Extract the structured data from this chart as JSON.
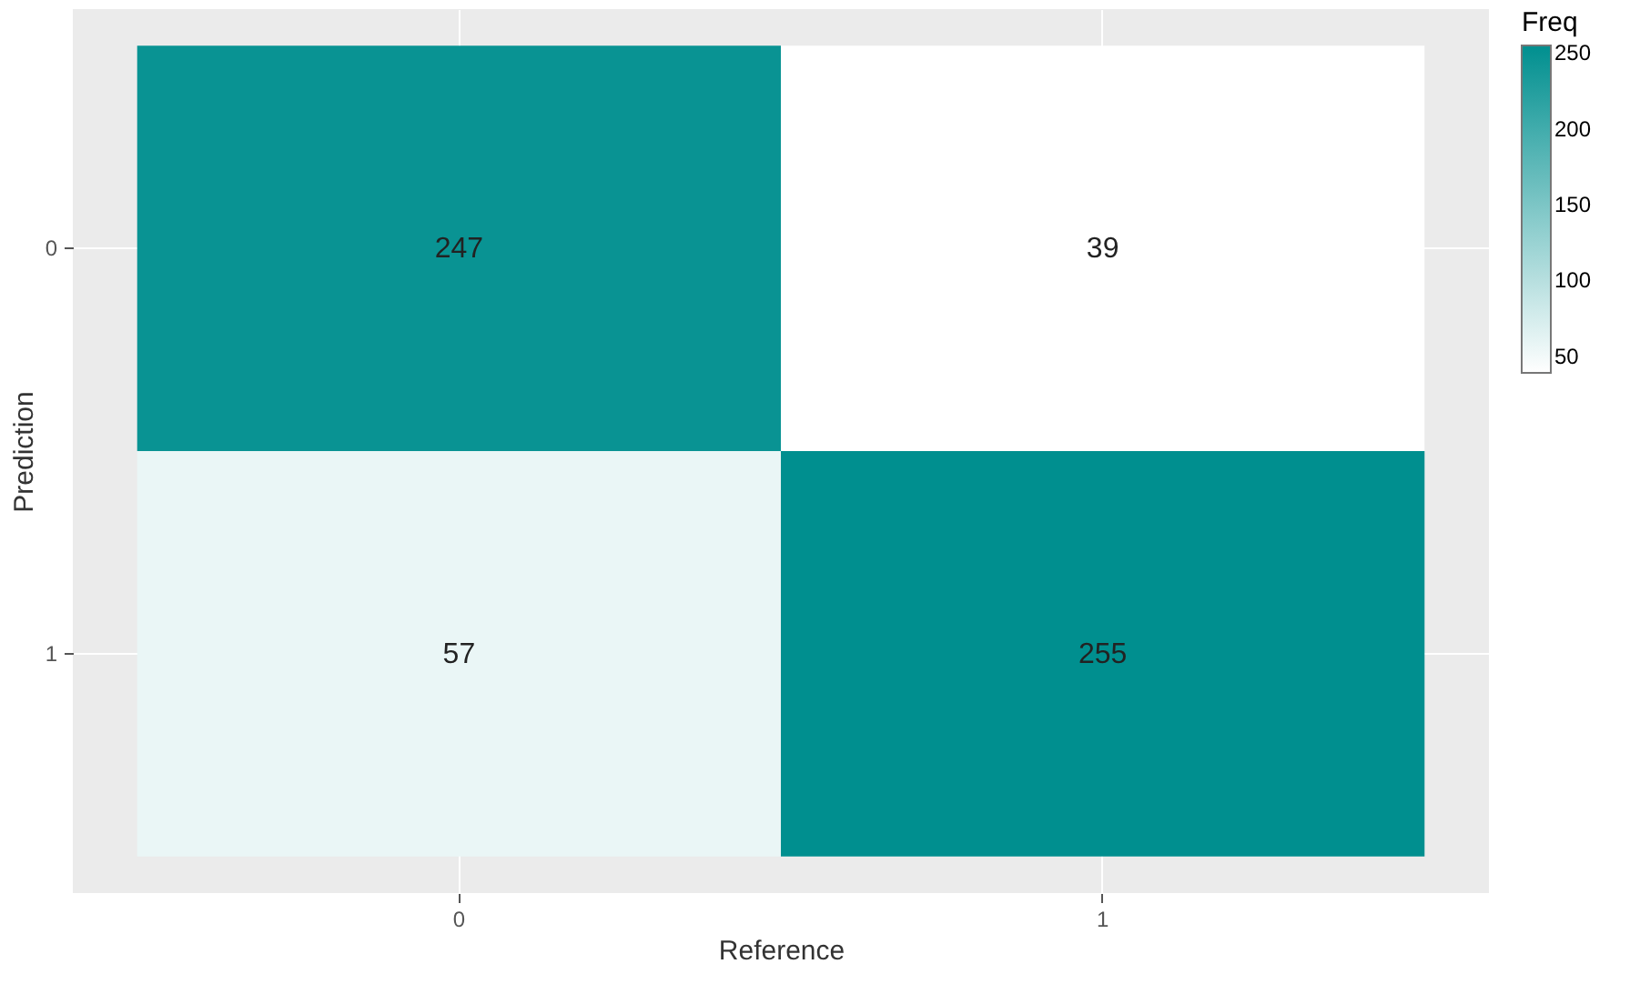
{
  "chart_data": {
    "type": "heatmap",
    "xlabel": "Reference",
    "ylabel": "Prediction",
    "legend_title": "Freq",
    "categories": [
      "0",
      "1"
    ],
    "y_categories": [
      "0",
      "1"
    ],
    "cells": [
      [
        247,
        39
      ],
      [
        57,
        255
      ]
    ],
    "colors": [
      "#ffffff",
      "#008f8f"
    ],
    "clim": [
      39,
      255
    ],
    "cticks": [
      50,
      100,
      150,
      200,
      250
    ],
    "data_labels": true,
    "grid": true
  }
}
